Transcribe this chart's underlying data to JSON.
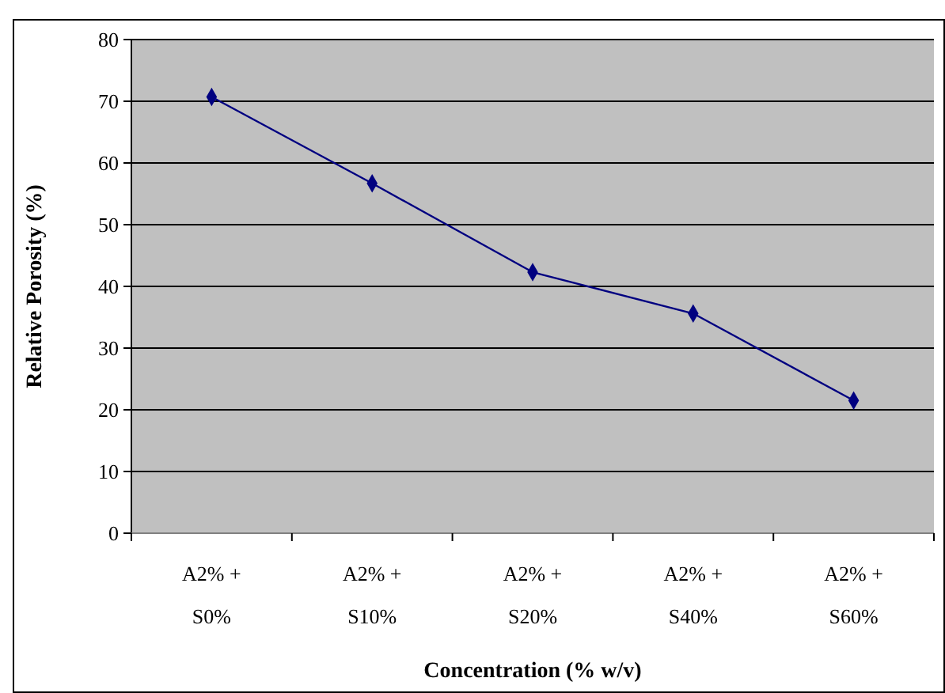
{
  "chart_data": {
    "type": "line",
    "xlabel": "Concentration (% w/v)",
    "ylabel": "Relative Porosity (%)",
    "categories": [
      "A2% +\nS0%",
      "A2% +\nS10%",
      "A2% +\nS20%",
      "A2% +\nS40%",
      "A2% +\nS60%"
    ],
    "series": [
      {
        "color": "#000080",
        "values": [
          70.7,
          56.7,
          42.3,
          35.6,
          21.5
        ]
      }
    ],
    "ylim": [
      0,
      80
    ],
    "yticks": [
      0,
      10,
      20,
      30,
      40,
      50,
      60,
      70,
      80
    ],
    "grid": "y",
    "marker": "diamond",
    "line_style": "solid"
  }
}
